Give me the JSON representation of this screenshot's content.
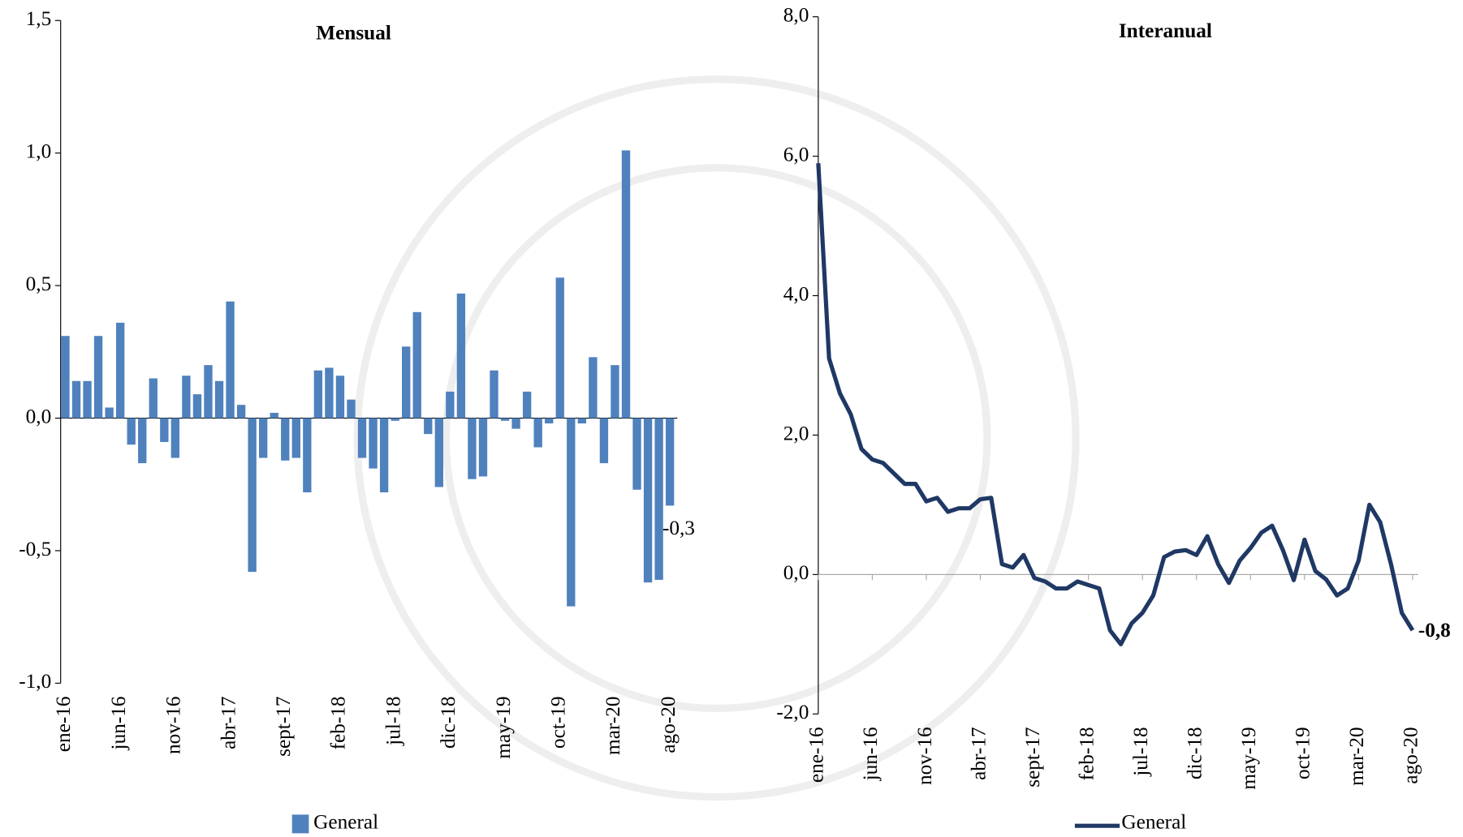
{
  "chart_data": [
    {
      "type": "bar",
      "title": "Mensual",
      "categories": [
        "ene-16",
        null,
        null,
        null,
        null,
        "jun-16",
        null,
        null,
        null,
        null,
        "nov-16",
        null,
        null,
        null,
        null,
        "abr-17",
        null,
        null,
        null,
        null,
        "sept-17",
        null,
        null,
        null,
        null,
        "feb-18",
        null,
        null,
        null,
        null,
        "jul-18",
        null,
        null,
        null,
        null,
        "dic-18",
        null,
        null,
        null,
        null,
        "may-19",
        null,
        null,
        null,
        null,
        "oct-19",
        null,
        null,
        null,
        null,
        "mar-20",
        null,
        null,
        null,
        null,
        "ago-20"
      ],
      "series": [
        {
          "name": "General",
          "color": "#4f81bd",
          "values": [
            0.31,
            0.14,
            0.14,
            0.31,
            0.04,
            0.36,
            -0.1,
            -0.17,
            0.15,
            -0.09,
            -0.15,
            0.16,
            0.09,
            0.2,
            0.14,
            0.44,
            0.05,
            -0.58,
            -0.15,
            0.02,
            -0.16,
            -0.15,
            -0.28,
            0.18,
            0.19,
            0.16,
            0.07,
            -0.15,
            -0.19,
            -0.28,
            -0.01,
            0.27,
            0.4,
            -0.06,
            -0.26,
            0.1,
            0.47,
            -0.23,
            -0.22,
            0.18,
            -0.01,
            -0.04,
            0.1,
            -0.11,
            -0.02,
            0.53,
            -0.71,
            -0.02,
            0.23,
            -0.17,
            0.2,
            1.01,
            -0.27,
            -0.62,
            -0.61,
            -0.33
          ],
          "value_labels": [
            null,
            null,
            null,
            null,
            null,
            null,
            null,
            null,
            null,
            null,
            null,
            null,
            null,
            null,
            null,
            null,
            null,
            null,
            null,
            null,
            null,
            null,
            null,
            null,
            null,
            null,
            null,
            null,
            null,
            null,
            null,
            null,
            null,
            null,
            null,
            null,
            null,
            null,
            null,
            null,
            null,
            null,
            null,
            null,
            null,
            null,
            null,
            null,
            null,
            null,
            null,
            null,
            null,
            null,
            null,
            "-0,3"
          ]
        }
      ],
      "ylim": [
        -1.0,
        1.5
      ],
      "yticks": [
        {
          "value": -1.0,
          "label": "-1,0"
        },
        {
          "value": -0.5,
          "label": "-0,5"
        },
        {
          "value": 0.0,
          "label": "0,0"
        },
        {
          "value": 0.5,
          "label": "0,5"
        },
        {
          "value": 1.0,
          "label": "1,0"
        },
        {
          "value": 1.5,
          "label": "1,5"
        }
      ],
      "grid": false,
      "legend": "bottom"
    },
    {
      "type": "line",
      "title": "Interanual",
      "categories": [
        "ene-16",
        null,
        null,
        null,
        null,
        "jun-16",
        null,
        null,
        null,
        null,
        "nov-16",
        null,
        null,
        null,
        null,
        "abr-17",
        null,
        null,
        null,
        null,
        "sept-17",
        null,
        null,
        null,
        null,
        "feb-18",
        null,
        null,
        null,
        null,
        "jul-18",
        null,
        null,
        null,
        null,
        "dic-18",
        null,
        null,
        null,
        null,
        "may-19",
        null,
        null,
        null,
        null,
        "oct-19",
        null,
        null,
        null,
        null,
        "mar-20",
        null,
        null,
        null,
        null,
        "ago-20"
      ],
      "series": [
        {
          "name": "General",
          "color": "#1f3864",
          "values": [
            5.9,
            3.1,
            2.6,
            2.3,
            1.8,
            1.65,
            1.6,
            1.45,
            1.3,
            1.3,
            1.05,
            1.1,
            0.9,
            0.95,
            0.95,
            1.08,
            1.1,
            0.15,
            0.1,
            0.28,
            -0.05,
            -0.1,
            -0.2,
            -0.2,
            -0.1,
            -0.15,
            -0.2,
            -0.8,
            -1.0,
            -0.7,
            -0.55,
            -0.3,
            0.25,
            0.33,
            0.35,
            0.28,
            0.55,
            0.15,
            -0.12,
            0.2,
            0.38,
            0.6,
            0.7,
            0.35,
            -0.08,
            0.5,
            0.05,
            -0.07,
            -0.3,
            -0.2,
            0.2,
            1.0,
            0.75,
            0.15,
            -0.55,
            -0.8
          ],
          "value_labels": [
            null,
            null,
            null,
            null,
            null,
            null,
            null,
            null,
            null,
            null,
            null,
            null,
            null,
            null,
            null,
            null,
            null,
            null,
            null,
            null,
            null,
            null,
            null,
            null,
            null,
            null,
            null,
            null,
            null,
            null,
            null,
            null,
            null,
            null,
            null,
            null,
            null,
            null,
            null,
            null,
            null,
            null,
            null,
            null,
            null,
            null,
            null,
            null,
            null,
            null,
            null,
            null,
            null,
            null,
            null,
            "-0,8"
          ]
        }
      ],
      "ylim": [
        -2.0,
        8.0
      ],
      "yticks": [
        {
          "value": -2.0,
          "label": "-2,0"
        },
        {
          "value": 0.0,
          "label": "0,0"
        },
        {
          "value": 2.0,
          "label": "2,0"
        },
        {
          "value": 4.0,
          "label": "4,0"
        },
        {
          "value": 6.0,
          "label": "6,0"
        },
        {
          "value": 8.0,
          "label": "8,0"
        }
      ],
      "grid": false,
      "legend": "bottom"
    }
  ]
}
